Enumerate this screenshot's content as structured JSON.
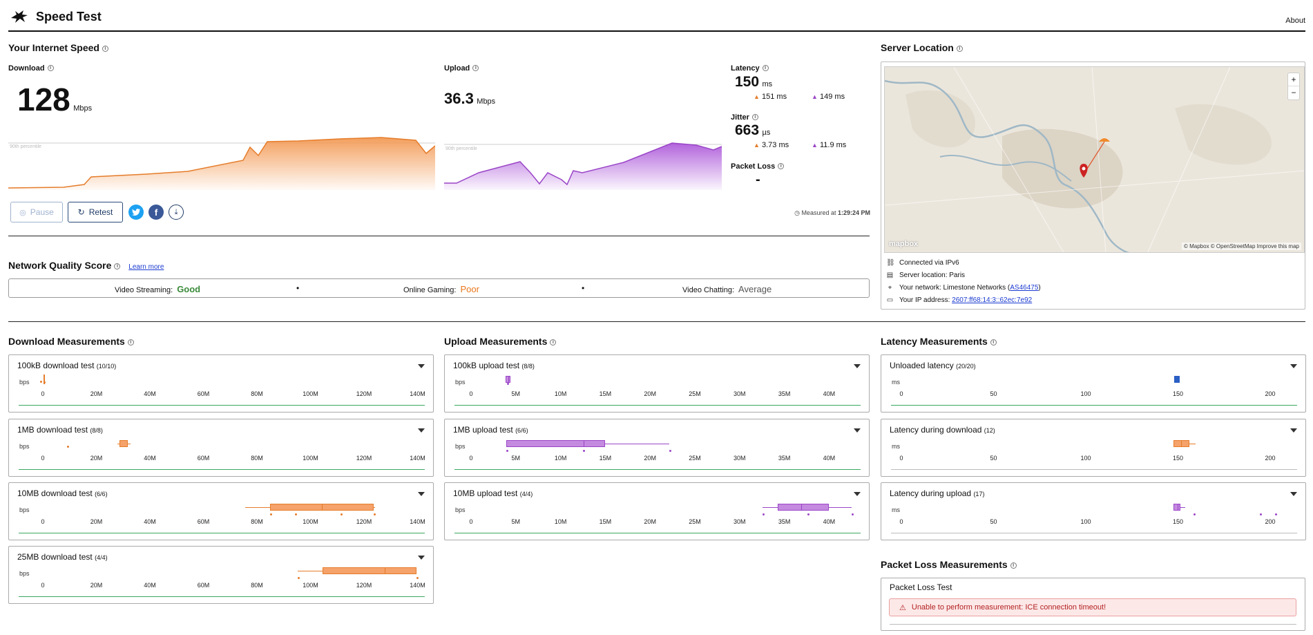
{
  "header": {
    "title": "Speed Test",
    "about": "About"
  },
  "speed": {
    "title": "Your Internet Speed",
    "download": {
      "label": "Download",
      "value": "128",
      "unit": "Mbps",
      "percentile": "90th percentile"
    },
    "upload": {
      "label": "Upload",
      "value": "36.3",
      "unit": "Mbps",
      "percentile": "90th percentile"
    },
    "latency": {
      "label": "Latency",
      "value": "150",
      "unit": "ms",
      "down": "151",
      "down_unit": "ms",
      "up": "149",
      "up_unit": "ms"
    },
    "jitter": {
      "label": "Jitter",
      "value": "663",
      "unit": "µs",
      "down": "3.73",
      "down_unit": "ms",
      "up": "11.9",
      "up_unit": "ms"
    },
    "packet_loss": {
      "label": "Packet Loss",
      "value": "-"
    },
    "pause_label": "Pause",
    "retest_label": "Retest",
    "measured_prefix": "Measured at ",
    "measured_time": "1:29:24 PM"
  },
  "quality": {
    "title": "Network Quality Score",
    "learn_more": "Learn more",
    "streaming_label": "Video Streaming:",
    "streaming_value": "Good",
    "gaming_label": "Online Gaming:",
    "gaming_value": "Poor",
    "chatting_label": "Video Chatting:",
    "chatting_value": "Average",
    "dot": "•",
    "colors": {
      "good": "#3a8a3a",
      "poor": "#e8761a",
      "average": "#555555"
    }
  },
  "server": {
    "title": "Server Location",
    "map_attribution": "© Mapbox © OpenStreetMap",
    "map_improve": "Improve this map",
    "mapbox_logo": "mapbox",
    "zoom_in": "+",
    "zoom_out": "−",
    "connected": "Connected via IPv6",
    "location": "Server location: Paris",
    "network_prefix": "Your network: Limestone Networks (",
    "network_as": "AS46475",
    "network_suffix": ")",
    "ip_prefix": "Your IP address: ",
    "ip": "2607:ff68:14:3::62ec:7e92"
  },
  "download_measurements": {
    "title": "Download Measurements",
    "unit": "bps",
    "ticks": [
      "0",
      "20M",
      "40M",
      "60M",
      "80M",
      "100M",
      "120M",
      "140M"
    ],
    "tests": [
      {
        "name": "100kB download test",
        "count": "(10/10)"
      },
      {
        "name": "1MB download test",
        "count": "(8/8)"
      },
      {
        "name": "10MB download test",
        "count": "(6/6)"
      },
      {
        "name": "25MB download test",
        "count": "(4/4)"
      }
    ]
  },
  "upload_measurements": {
    "title": "Upload Measurements",
    "unit": "bps",
    "ticks": [
      "0",
      "5M",
      "10M",
      "15M",
      "20M",
      "25M",
      "30M",
      "35M",
      "40M"
    ],
    "tests": [
      {
        "name": "100kB upload test",
        "count": "(8/8)"
      },
      {
        "name": "1MB upload test",
        "count": "(6/6)"
      },
      {
        "name": "10MB upload test",
        "count": "(4/4)"
      }
    ]
  },
  "latency_measurements": {
    "title": "Latency Measurements",
    "unit": "ms",
    "ticks": [
      "0",
      "50",
      "100",
      "150",
      "200"
    ],
    "tests": [
      {
        "name": "Unloaded latency",
        "count": "(20/20)"
      },
      {
        "name": "Latency during download",
        "count": "(12)"
      },
      {
        "name": "Latency during upload",
        "count": "(17)"
      }
    ]
  },
  "packet_loss_measurements": {
    "title": "Packet Loss Measurements",
    "test_name": "Packet Loss Test",
    "error": "Unable to perform measurement: ICE connection timeout!"
  },
  "colors": {
    "download": "#f5a26b",
    "download_dark": "#e57c2a",
    "upload": "#c48ae0",
    "upload_dark": "#9a45c7",
    "latency": "#2b5fc4",
    "accent": "#1f3b66"
  }
}
